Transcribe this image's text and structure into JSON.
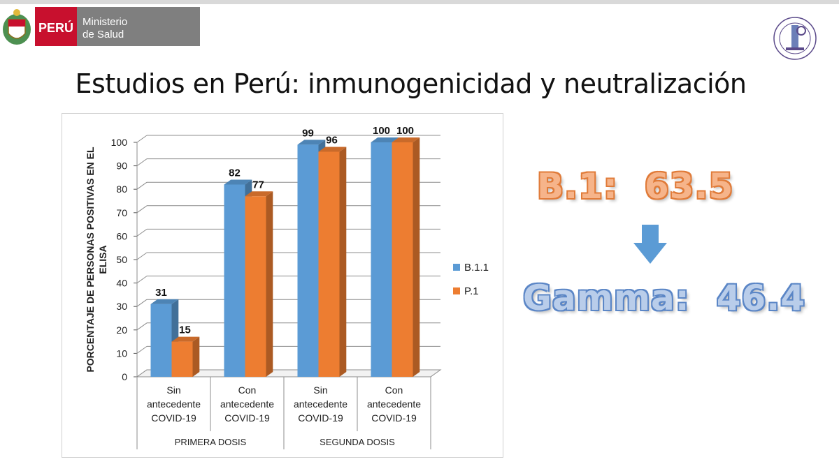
{
  "header": {
    "country": "PERÚ",
    "ministry_line1": "Ministerio",
    "ministry_line2": "de Salud"
  },
  "slide": {
    "title": "Estudios en Perú: inmunogenicidad y neutralización"
  },
  "summary": {
    "b1_label": "B.1:",
    "b1_value": "63.5",
    "gamma_label": "Gamma:",
    "gamma_value": "46.4",
    "arrow_icon": "down-arrow-icon"
  },
  "colors": {
    "series_b11": "#5b9bd5",
    "series_p1": "#ed7d31",
    "peru_red": "#c8102e",
    "ministry_gray": "#7f7f7f"
  },
  "chart_data": {
    "type": "bar",
    "ylabel": "PORCENTAJE DE PERSONAS POSITIVAS EN EL ELISA",
    "ylim": [
      0,
      100
    ],
    "yticks": [
      0,
      10,
      20,
      30,
      40,
      50,
      60,
      70,
      80,
      90,
      100
    ],
    "categories": [
      [
        "Sin",
        "antecedente",
        "COVID-19"
      ],
      [
        "Con",
        "antecedente",
        "COVID-19"
      ],
      [
        "Sin",
        "antecedente",
        "COVID-19"
      ],
      [
        "Con",
        "antecedente",
        "COVID-19"
      ]
    ],
    "groups": [
      {
        "label": "PRIMERA DOSIS",
        "span": [
          0,
          1
        ]
      },
      {
        "label": "SEGUNDA DOSIS",
        "span": [
          2,
          3
        ]
      }
    ],
    "series": [
      {
        "name": "B.1.1",
        "color": "#5b9bd5",
        "values": [
          31,
          82,
          99,
          100
        ]
      },
      {
        "name": "P.1",
        "color": "#ed7d31",
        "values": [
          15,
          77,
          96,
          100
        ]
      }
    ],
    "grid": true,
    "legend": "right",
    "style": "3d-column"
  }
}
